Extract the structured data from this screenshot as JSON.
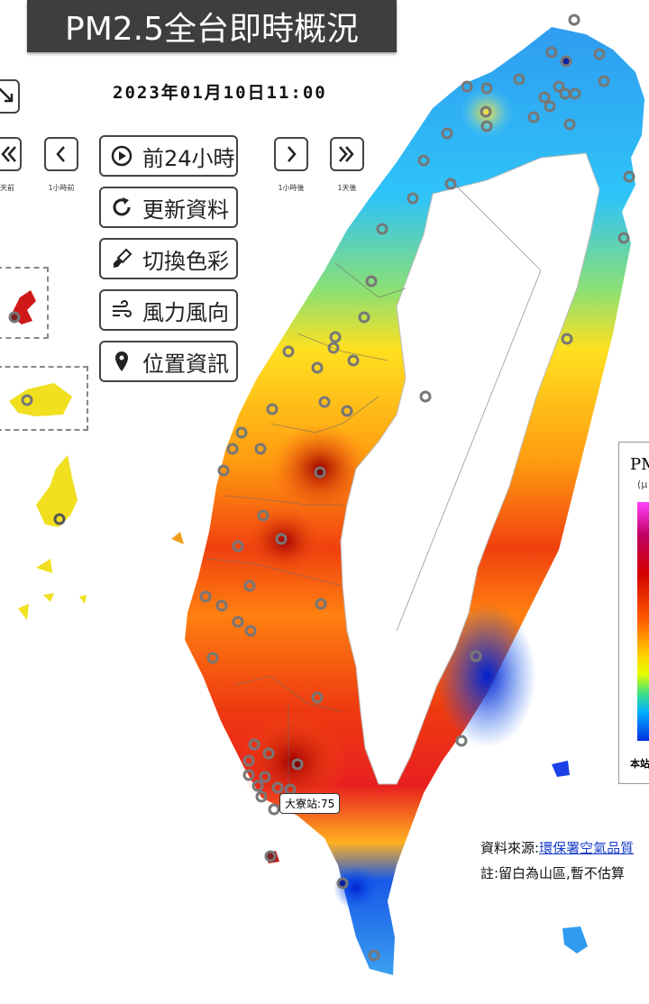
{
  "header": {
    "title": "PM2.5全台即時概況",
    "datetime": "2023年01月10日11:00"
  },
  "nav": {
    "prev_day_label": "天前",
    "prev_hour_label": "1小時前",
    "next_hour_label": "1小時後",
    "next_day_label": "1天後",
    "play_label": "前24小時",
    "refresh_label": "更新資料",
    "color_label": "切換色彩",
    "wind_label": "風力風向",
    "location_label": "位置資訊"
  },
  "legend": {
    "title": "PM",
    "unit": "(μ",
    "footnote": "本站"
  },
  "notes": {
    "source_prefix": "資料來源:",
    "source_link": "環保署空氣品質",
    "remark": "註:留白為山區,暫不估算"
  },
  "callout": {
    "station": "大寮站:75"
  },
  "icons": {
    "exit": "exit-fullscreen-icon",
    "play": "play-circle-icon",
    "refresh": "refresh-icon",
    "brush": "paint-brush-icon",
    "wind": "wind-icon",
    "pin": "location-pin-icon"
  },
  "colors": {
    "high": "#d40000",
    "mid": "#ff8c00",
    "moderate": "#ffe000",
    "low": "#30c8ff",
    "very_low": "#0030e0",
    "station_ring": "#777777"
  }
}
